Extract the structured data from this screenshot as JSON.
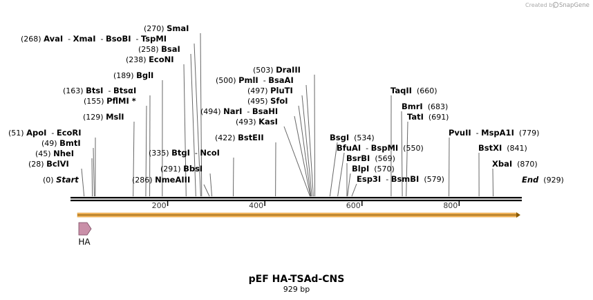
{
  "credit": {
    "prefix": "Created by",
    "brand": "SnapGene"
  },
  "plasmid": {
    "name": "pEF HA-TSAd-CNS",
    "length_label": "929 bp",
    "length_bp": 929
  },
  "sites": [
    {
      "id": "start",
      "text": [
        "(0) ",
        {
          "b": "Start",
          "i": true
        }
      ],
      "bp": 0
    },
    {
      "id": "bclvi",
      "text": [
        "(28) ",
        {
          "b": "BclVI"
        }
      ],
      "bp": 28
    },
    {
      "id": "nhei",
      "text": [
        "(45) ",
        {
          "b": "NheI"
        }
      ],
      "bp": 45
    },
    {
      "id": "bmti",
      "text": [
        "(49) ",
        {
          "b": "BmtI"
        }
      ],
      "bp": 49
    },
    {
      "id": "apoi",
      "text": [
        "(51) ",
        {
          "b": "ApoI"
        },
        "  - ",
        {
          "b": "EcoRI"
        }
      ],
      "bp": 51
    },
    {
      "id": "msli",
      "text": [
        "(129) ",
        {
          "b": "MslI"
        }
      ],
      "bp": 129
    },
    {
      "id": "pflmi",
      "text": [
        "(155) ",
        {
          "b": "PflMI *"
        }
      ],
      "bp": 155
    },
    {
      "id": "btsi",
      "text": [
        "(163) ",
        {
          "b": "BtsI"
        },
        "  - ",
        {
          "b": "BtsαI"
        }
      ],
      "bp": 163
    },
    {
      "id": "bgli",
      "text": [
        "(189) ",
        {
          "b": "BglI"
        }
      ],
      "bp": 189
    },
    {
      "id": "econi",
      "text": [
        "(238) ",
        {
          "b": "EcoNI"
        }
      ],
      "bp": 238
    },
    {
      "id": "bsai",
      "text": [
        "(258) ",
        {
          "b": "BsaI"
        }
      ],
      "bp": 258
    },
    {
      "id": "avai",
      "text": [
        "(268) ",
        {
          "b": "AvaI"
        },
        "  - ",
        {
          "b": "XmaI"
        },
        "  - ",
        {
          "b": "BsoBI"
        },
        "  - ",
        {
          "b": "TspMI"
        }
      ],
      "bp": 268
    },
    {
      "id": "smai",
      "text": [
        "(270) ",
        {
          "b": "SmaI"
        }
      ],
      "bp": 270
    },
    {
      "id": "nmeaiii",
      "text": [
        "(286) ",
        {
          "b": "NmeAIII"
        }
      ],
      "bp": 286
    },
    {
      "id": "bbsi",
      "text": [
        "(291) ",
        {
          "b": "BbsI"
        }
      ],
      "bp": 291
    },
    {
      "id": "btgi",
      "text": [
        "(335) ",
        {
          "b": "BtgI"
        },
        "  - ",
        {
          "b": "NcoI"
        }
      ],
      "bp": 335
    },
    {
      "id": "bsteii",
      "text": [
        "(422) ",
        {
          "b": "BstEII"
        }
      ],
      "bp": 422
    },
    {
      "id": "kasi",
      "text": [
        "(493) ",
        {
          "b": "KasI"
        }
      ],
      "bp": 493
    },
    {
      "id": "nari",
      "text": [
        "(494) ",
        {
          "b": "NarI"
        },
        "  - ",
        {
          "b": "BsaHI"
        }
      ],
      "bp": 494
    },
    {
      "id": "sfoi",
      "text": [
        "(495) ",
        {
          "b": "SfoI"
        }
      ],
      "bp": 495
    },
    {
      "id": "pluti",
      "text": [
        "(497) ",
        {
          "b": "PluTI"
        }
      ],
      "bp": 497
    },
    {
      "id": "pmli",
      "text": [
        "(500) ",
        {
          "b": "PmlI"
        },
        "  - ",
        {
          "b": "BsaAI"
        }
      ],
      "bp": 500
    },
    {
      "id": "draiii",
      "text": [
        "(503) ",
        {
          "b": "DraIII"
        }
      ],
      "bp": 503
    },
    {
      "id": "bsgi",
      "text": [
        {
          "b": "BsgI"
        },
        "  (534)"
      ],
      "bp": 534
    },
    {
      "id": "bfuai",
      "text": [
        {
          "b": "BfuAI"
        },
        "  - ",
        {
          "b": "BspMI"
        },
        "  (550)"
      ],
      "bp": 550
    },
    {
      "id": "bsrbi",
      "text": [
        {
          "b": "BsrBI"
        },
        "  (569)"
      ],
      "bp": 569
    },
    {
      "id": "blpi",
      "text": [
        {
          "b": "BlpI"
        },
        "  (570)"
      ],
      "bp": 570
    },
    {
      "id": "esp3i",
      "text": [
        {
          "b": "Esp3I"
        },
        "  - ",
        {
          "b": "BsmBI"
        },
        "  (579)"
      ],
      "bp": 579
    },
    {
      "id": "taqii",
      "text": [
        {
          "b": "TaqII"
        },
        "  (660)"
      ],
      "bp": 660
    },
    {
      "id": "bmri",
      "text": [
        {
          "b": "BmrI"
        },
        "  (683)"
      ],
      "bp": 683
    },
    {
      "id": "tati",
      "text": [
        {
          "b": "TatI"
        },
        "  (691)"
      ],
      "bp": 691
    },
    {
      "id": "pvuii",
      "text": [
        {
          "b": "PvuII"
        },
        "  - ",
        {
          "b": "MspA1I"
        },
        "  (779)"
      ],
      "bp": 779
    },
    {
      "id": "bstxi",
      "text": [
        {
          "b": "BstXI"
        },
        "  (841)"
      ],
      "bp": 841
    },
    {
      "id": "xbai",
      "text": [
        {
          "b": "XbaI"
        },
        "  (870)"
      ],
      "bp": 870
    },
    {
      "id": "end",
      "text": [
        {
          "b": "End",
          "i": true
        },
        "  (929)"
      ],
      "bp": 929
    }
  ],
  "ticks": [
    200,
    400,
    600,
    800
  ],
  "tick_labels": [
    "200",
    "400",
    "600",
    "800"
  ],
  "features": [
    {
      "name": "HA",
      "start_bp": 0,
      "end_bp": 27,
      "color": "#c98fa8",
      "direction": "forward"
    }
  ],
  "orf": {
    "start_bp": 0,
    "end_bp": 929,
    "color": "#f0b25a",
    "direction": "forward"
  }
}
